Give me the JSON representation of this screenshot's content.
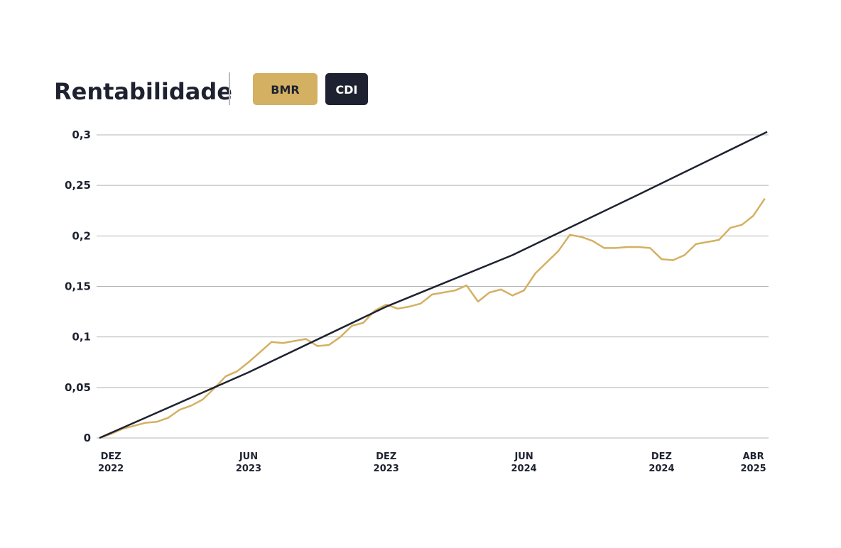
{
  "chart_data": {
    "type": "line",
    "title": "Rentabilidade",
    "xlim": [
      -0.5,
      28.6
    ],
    "xticks": [
      {
        "value": 0,
        "label": "DEZ 2022"
      },
      {
        "value": 6,
        "label": "JUN 2023"
      },
      {
        "value": 12,
        "label": "DEZ 2023"
      },
      {
        "value": 18,
        "label": "JUN 2024"
      },
      {
        "value": 24,
        "label": "DEZ 2024"
      },
      {
        "value": 28,
        "label": "ABR 2025"
      }
    ],
    "ylim": [
      0,
      0.3
    ],
    "yticks": [
      0,
      {
        "value": 0.05,
        "label": "0,05"
      },
      {
        "value": 0.1,
        "label": "0,1"
      },
      {
        "value": 0.15,
        "label": "0,15"
      },
      {
        "value": 0.2,
        "label": "0,2"
      },
      {
        "value": 0.25,
        "label": "0,25"
      },
      {
        "value": 0.3,
        "label": "0,3"
      }
    ],
    "grid": true,
    "series": [
      {
        "name": "BMR",
        "color": "#d4b062",
        "x": [
          -0.5,
          0,
          0.5,
          1,
          1.5,
          2,
          2.5,
          3,
          3.5,
          4,
          4.5,
          5,
          5.5,
          6,
          6.5,
          7,
          7.5,
          8,
          8.5,
          9,
          9.5,
          10,
          10.5,
          11,
          11.5,
          12,
          12.5,
          13,
          13.5,
          14,
          14.5,
          15,
          15.5,
          16,
          16.5,
          17,
          17.5,
          18,
          18.5,
          19,
          19.5,
          20,
          20.5,
          21,
          21.5,
          22,
          22.5,
          23,
          23.5,
          24,
          24.5,
          25,
          25.5,
          26,
          26.5,
          27,
          27.5,
          28,
          28.5
        ],
        "values": [
          0,
          0.004,
          0.009,
          0.012,
          0.015,
          0.016,
          0.02,
          0.028,
          0.032,
          0.038,
          0.049,
          0.061,
          0.066,
          0.075,
          0.085,
          0.095,
          0.094,
          0.096,
          0.098,
          0.091,
          0.092,
          0.1,
          0.111,
          0.114,
          0.126,
          0.132,
          0.128,
          0.13,
          0.133,
          0.142,
          0.144,
          0.146,
          0.151,
          0.135,
          0.144,
          0.147,
          0.141,
          0.146,
          0.163,
          0.174,
          0.185,
          0.201,
          0.199,
          0.195,
          0.188,
          0.188,
          0.189,
          0.189,
          0.188,
          0.177,
          0.176,
          0.181,
          0.192,
          0.194,
          0.196,
          0.208,
          0.211,
          0.22,
          0.237
        ]
      },
      {
        "name": "CDI",
        "color": "#1e2230",
        "x": [
          -0.5,
          6,
          12,
          17.5,
          23,
          28.6
        ],
        "values": [
          0,
          0.065,
          0.13,
          0.181,
          0.241,
          0.303
        ]
      }
    ]
  }
}
